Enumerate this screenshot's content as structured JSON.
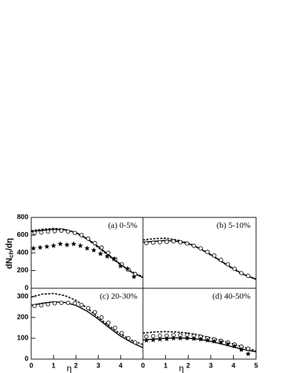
{
  "chart_data": [
    {
      "type": "line",
      "title": "(a) 0-5%",
      "ylabel": {
        "main": "dN",
        "sub": "ch",
        "rest": "/dη"
      },
      "xlim": [
        0,
        5
      ],
      "ylim": [
        0,
        800
      ],
      "yticks": [
        0,
        200,
        400,
        600,
        800
      ],
      "series": [
        {
          "marker": "line",
          "dash": "solid",
          "color": "#000000",
          "x": [
            0,
            0.5,
            1,
            1.5,
            2,
            2.5,
            3,
            3.5,
            4,
            4.5,
            5
          ],
          "values": [
            640,
            655,
            665,
            660,
            630,
            560,
            470,
            370,
            270,
            180,
            120
          ]
        },
        {
          "marker": "line",
          "dash": "dashed",
          "color": "#000000",
          "x": [
            0,
            0.5,
            1,
            1.5,
            2,
            2.5,
            3,
            3.5,
            4,
            4.5,
            5
          ],
          "values": [
            650,
            665,
            675,
            665,
            625,
            555,
            460,
            360,
            265,
            185,
            130
          ]
        },
        {
          "marker": "circle",
          "color": "#000000",
          "x": [
            0.15,
            0.45,
            0.75,
            1.05,
            1.35,
            1.65,
            1.95,
            2.25,
            2.55,
            2.85,
            3.15,
            3.45,
            3.75,
            4.05,
            4.35,
            4.65
          ],
          "values": [
            625,
            630,
            640,
            645,
            650,
            640,
            625,
            600,
            560,
            510,
            460,
            400,
            330,
            270,
            210,
            160
          ]
        },
        {
          "marker": "star",
          "color": "#000000",
          "x": [
            0.1,
            0.4,
            0.7,
            1.0,
            1.3,
            1.6,
            1.9,
            2.2,
            2.5,
            2.8,
            3.1,
            3.4,
            3.7,
            4.0,
            4.3,
            4.6
          ],
          "values": [
            450,
            460,
            470,
            480,
            500,
            490,
            500,
            480,
            450,
            430,
            390,
            360,
            330,
            250,
            220,
            130
          ]
        }
      ]
    },
    {
      "type": "line",
      "title": "(b) 5-10%",
      "xlim": [
        0,
        5
      ],
      "ylim": [
        0,
        800
      ],
      "series": [
        {
          "marker": "line",
          "dash": "solid",
          "color": "#000000",
          "x": [
            0,
            0.5,
            1,
            1.5,
            2,
            2.5,
            3,
            3.5,
            4,
            4.5,
            5
          ],
          "values": [
            520,
            530,
            540,
            530,
            505,
            450,
            380,
            300,
            220,
            150,
            100
          ]
        },
        {
          "marker": "line",
          "dash": "dashed",
          "color": "#000000",
          "x": [
            0,
            0.5,
            1,
            1.5,
            2,
            2.5,
            3,
            3.5,
            4,
            4.5,
            5
          ],
          "values": [
            545,
            560,
            565,
            545,
            510,
            450,
            375,
            295,
            215,
            150,
            105
          ]
        },
        {
          "marker": "circle",
          "color": "#000000",
          "x": [
            0.15,
            0.45,
            0.75,
            1.05,
            1.35,
            1.65,
            1.95,
            2.25,
            2.55,
            2.85,
            3.15,
            3.45,
            3.75,
            4.05,
            4.35,
            4.65
          ],
          "values": [
            510,
            515,
            520,
            525,
            530,
            520,
            505,
            480,
            450,
            410,
            370,
            320,
            270,
            220,
            170,
            140
          ]
        }
      ]
    },
    {
      "type": "line",
      "title": "(c) 20-30%",
      "xlabel": "η",
      "xlim": [
        0,
        5
      ],
      "ylim": [
        0,
        340
      ],
      "xticks": [
        0,
        1,
        2,
        3,
        4
      ],
      "yticks": [
        0,
        100,
        200,
        300
      ],
      "series": [
        {
          "marker": "line",
          "dash": "solid",
          "color": "#000000",
          "x": [
            0,
            0.5,
            1,
            1.5,
            2,
            2.5,
            3,
            3.5,
            4,
            4.5,
            5
          ],
          "values": [
            258,
            268,
            275,
            272,
            258,
            230,
            192,
            150,
            110,
            80,
            55
          ]
        },
        {
          "marker": "line",
          "dash": "dashed",
          "color": "#000000",
          "x": [
            0,
            0.5,
            1,
            1.5,
            2,
            2.5,
            3,
            3.5,
            4,
            4.5,
            5
          ],
          "values": [
            298,
            312,
            315,
            305,
            282,
            245,
            200,
            158,
            120,
            90,
            70
          ]
        },
        {
          "marker": "circle",
          "color": "#000000",
          "x": [
            0.15,
            0.45,
            0.75,
            1.05,
            1.35,
            1.65,
            1.95,
            2.25,
            2.55,
            2.85,
            3.15,
            3.45,
            3.75,
            4.05,
            4.35,
            4.65
          ],
          "values": [
            255,
            258,
            263,
            268,
            270,
            270,
            268,
            260,
            245,
            225,
            200,
            175,
            150,
            125,
            100,
            80
          ]
        }
      ]
    },
    {
      "type": "line",
      "title": "(d) 40-50%",
      "xlabel": "η",
      "xlim": [
        0,
        5
      ],
      "ylim": [
        0,
        340
      ],
      "xticks": [
        0,
        1,
        2,
        3,
        4,
        5
      ],
      "series": [
        {
          "marker": "line",
          "dash": "solid",
          "color": "#000000",
          "x": [
            0,
            0.5,
            1,
            1.5,
            2,
            2.5,
            3,
            3.5,
            4,
            4.5,
            5
          ],
          "values": [
            92,
            96,
            100,
            102,
            100,
            95,
            85,
            72,
            58,
            45,
            35
          ]
        },
        {
          "marker": "line",
          "dash": "dashed",
          "color": "#000000",
          "x": [
            0,
            0.5,
            1,
            1.5,
            2,
            2.5,
            3,
            3.5,
            4,
            4.5,
            5
          ],
          "values": [
            125,
            130,
            132,
            130,
            125,
            115,
            102,
            88,
            72,
            55,
            40
          ]
        },
        {
          "marker": "circle",
          "color": "#000000",
          "x": [
            0.15,
            0.45,
            0.75,
            1.05,
            1.35,
            1.65,
            1.95,
            2.25,
            2.55,
            2.85,
            3.15,
            3.45,
            3.75,
            4.05,
            4.35,
            4.65
          ],
          "values": [
            108,
            110,
            112,
            112,
            115,
            115,
            115,
            112,
            108,
            100,
            95,
            88,
            80,
            70,
            60,
            50
          ]
        },
        {
          "marker": "star",
          "color": "#000000",
          "x": [
            0.15,
            0.45,
            0.75,
            1.05,
            1.35,
            1.65,
            1.95,
            2.25,
            2.55,
            2.85,
            3.15,
            3.45,
            3.75,
            4.05,
            4.35,
            4.65
          ],
          "values": [
            90,
            92,
            95,
            97,
            100,
            100,
            100,
            98,
            95,
            90,
            85,
            80,
            72,
            62,
            45,
            25
          ]
        }
      ]
    }
  ]
}
